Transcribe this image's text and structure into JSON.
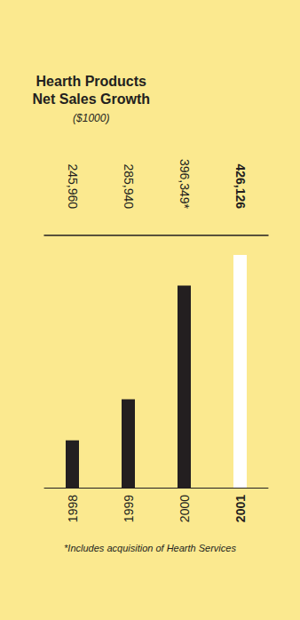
{
  "chart_data": {
    "type": "bar",
    "title": "Hearth Products Net Sales Growth",
    "subtitle": "($1000)",
    "categories": [
      "1998",
      "1999",
      "2000",
      "2001"
    ],
    "values": [
      245960,
      285940,
      396349,
      426126
    ],
    "value_labels": [
      "245,960",
      "285,940",
      "396,349*",
      "426,126"
    ],
    "colors": [
      "#231f20",
      "#231f20",
      "#231f20",
      "#ffffff"
    ],
    "ylim": [
      200000,
      445000
    ],
    "yticks": [],
    "grid": false,
    "data_labels": true,
    "tick_labels": "x",
    "annotation": "*Includes acquisition of Hearth Services"
  }
}
